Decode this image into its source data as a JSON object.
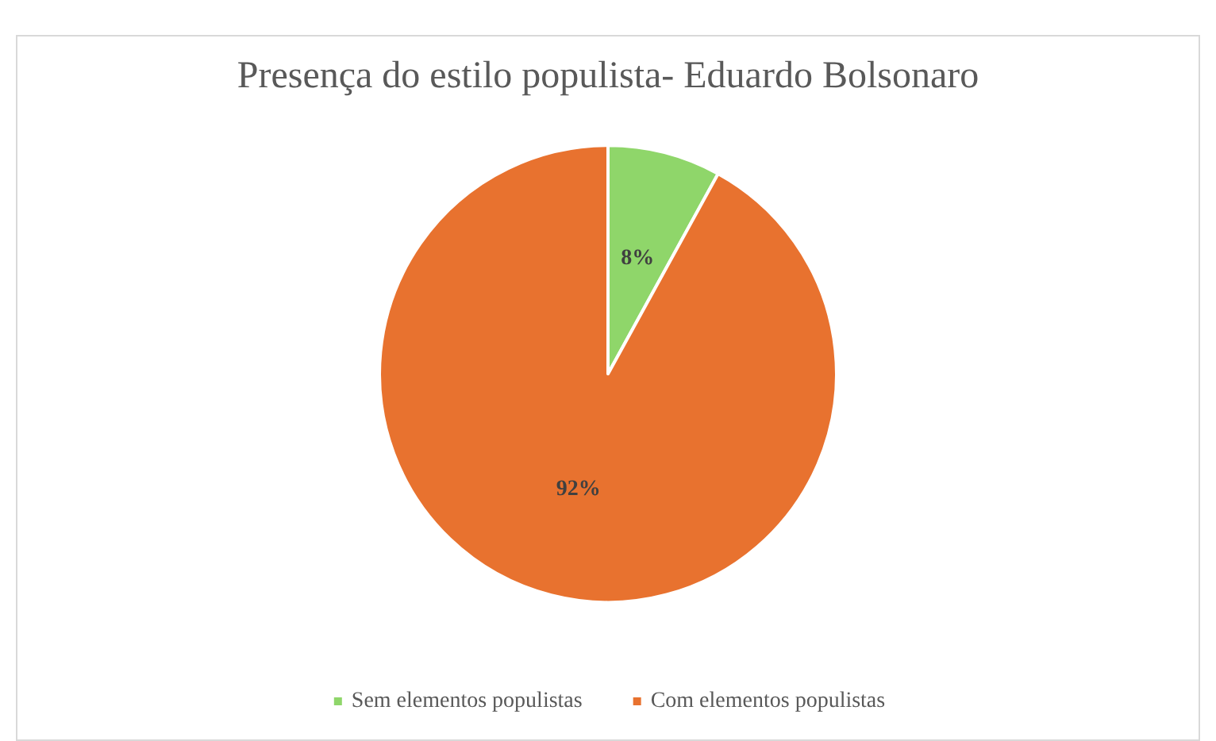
{
  "chart_data": {
    "type": "pie",
    "title": "Presença do estilo populista- Eduardo Bolsonaro",
    "categories": [
      "Sem elementos populistas",
      "Com elementos populistas"
    ],
    "values": [
      8,
      92
    ],
    "colors": [
      "#8fd66a",
      "#e8722f"
    ],
    "value_labels": [
      "8%",
      "92%"
    ],
    "legend": "bottom"
  }
}
